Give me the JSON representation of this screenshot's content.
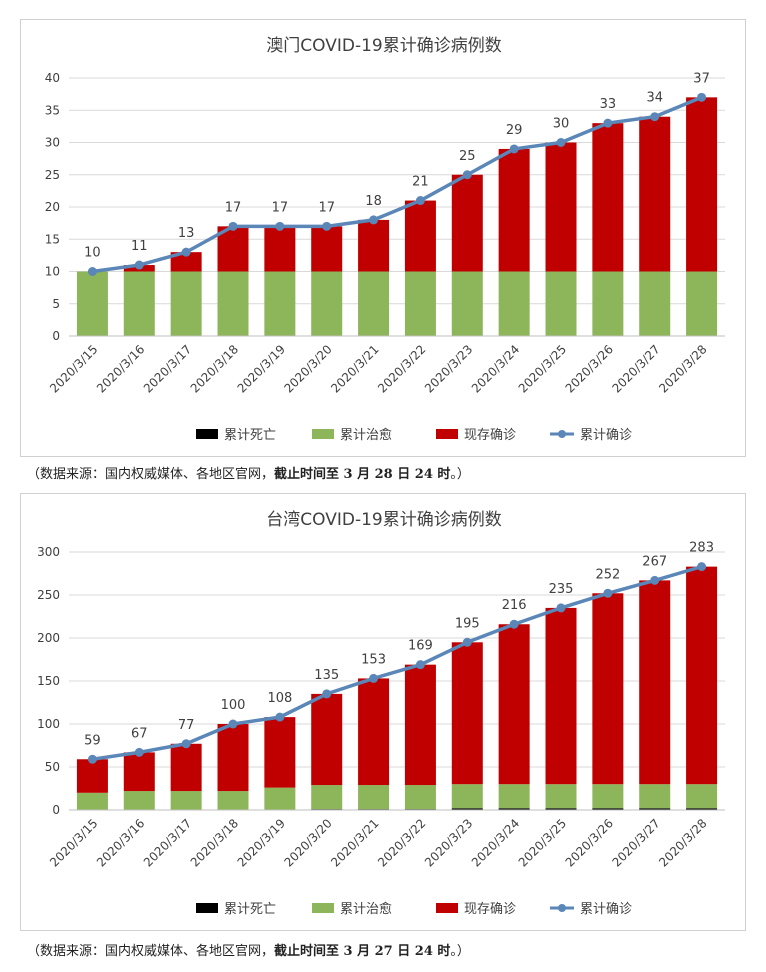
{
  "chart_data": [
    {
      "type": "bar",
      "stacked": true,
      "title": "澳门COVID-19累计确诊病例数",
      "categories": [
        "2020/3/15",
        "2020/3/16",
        "2020/3/17",
        "2020/3/18",
        "2020/3/19",
        "2020/3/20",
        "2020/3/21",
        "2020/3/22",
        "2020/3/23",
        "2020/3/24",
        "2020/3/25",
        "2020/3/26",
        "2020/3/27",
        "2020/3/28"
      ],
      "ylim": [
        0,
        40
      ],
      "yticks": [
        0,
        5,
        10,
        15,
        20,
        25,
        30,
        35,
        40
      ],
      "grid": true,
      "legend_position": "bottom",
      "series": [
        {
          "name": "累计死亡",
          "kind": "bar",
          "color": "#000000",
          "values": [
            0,
            0,
            0,
            0,
            0,
            0,
            0,
            0,
            0,
            0,
            0,
            0,
            0,
            0
          ]
        },
        {
          "name": "累计治愈",
          "kind": "bar",
          "color": "#8db55a",
          "values": [
            10,
            10,
            10,
            10,
            10,
            10,
            10,
            10,
            10,
            10,
            10,
            10,
            10,
            10
          ]
        },
        {
          "name": "现存确诊",
          "kind": "bar",
          "color": "#c00000",
          "values": [
            0,
            1,
            3,
            7,
            7,
            7,
            8,
            11,
            15,
            19,
            20,
            23,
            24,
            27
          ]
        },
        {
          "name": "累计确诊",
          "kind": "line",
          "color": "#5a86b8",
          "values": [
            10,
            11,
            13,
            17,
            17,
            17,
            18,
            21,
            25,
            29,
            30,
            33,
            34,
            37
          ]
        }
      ]
    },
    {
      "type": "bar",
      "stacked": true,
      "title": "台湾COVID-19累计确诊病例数",
      "categories": [
        "2020/3/15",
        "2020/3/16",
        "2020/3/17",
        "2020/3/18",
        "2020/3/19",
        "2020/3/20",
        "2020/3/21",
        "2020/3/22",
        "2020/3/23",
        "2020/3/24",
        "2020/3/25",
        "2020/3/26",
        "2020/3/27",
        "2020/3/28"
      ],
      "ylim": [
        0,
        300
      ],
      "yticks": [
        0,
        50,
        100,
        150,
        200,
        250,
        300
      ],
      "grid": true,
      "legend_position": "bottom",
      "series": [
        {
          "name": "累计死亡",
          "kind": "bar",
          "color": "#000000",
          "values": [
            0,
            0,
            0,
            0,
            0,
            1,
            1,
            1,
            2,
            2,
            2,
            2,
            2,
            2
          ]
        },
        {
          "name": "累计治愈",
          "kind": "bar",
          "color": "#8db55a",
          "values": [
            20,
            22,
            22,
            22,
            26,
            28,
            28,
            28,
            28,
            28,
            28,
            28,
            28,
            28
          ]
        },
        {
          "name": "现存确诊",
          "kind": "bar",
          "color": "#c00000",
          "values": [
            39,
            45,
            55,
            78,
            82,
            106,
            124,
            140,
            165,
            186,
            205,
            222,
            237,
            253
          ]
        },
        {
          "name": "累计确诊",
          "kind": "line",
          "color": "#5a86b8",
          "values": [
            59,
            67,
            77,
            100,
            108,
            135,
            153,
            169,
            195,
            216,
            235,
            252,
            267,
            283
          ]
        }
      ]
    }
  ],
  "notes": {
    "macau": {
      "prefix": "（数据来源：国内权威媒体、各地区官网，",
      "emph": "截止时间至 3 月 28 日 24 时",
      "suffix": "。）"
    },
    "taiwan": {
      "prefix": "（数据来源：国内权威媒体、各地区官网，",
      "emph": "截止时间至 3 月 27 日 24 时",
      "suffix": "。）"
    }
  }
}
